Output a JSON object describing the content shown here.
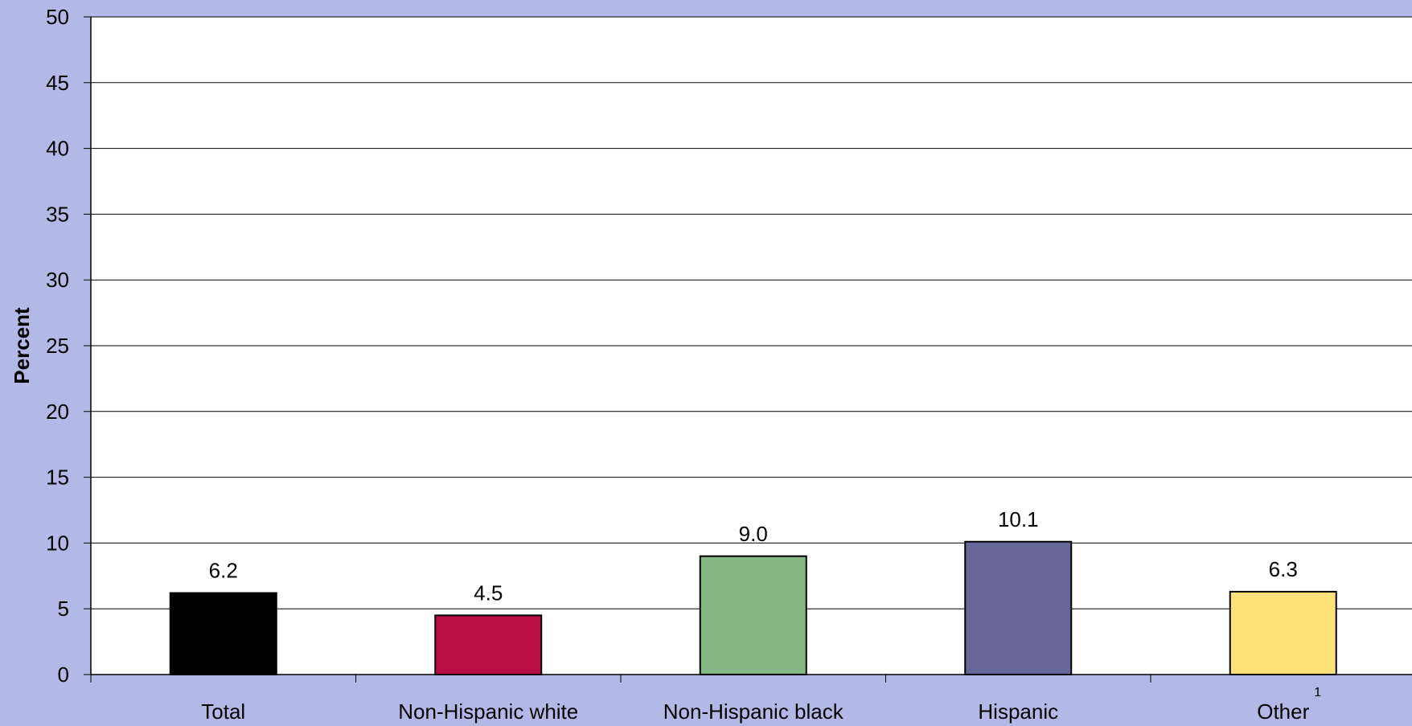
{
  "chart_data": {
    "type": "bar",
    "categories": [
      "Total",
      "Non-Hispanic white",
      "Non-Hispanic black",
      "Hispanic",
      "Other"
    ],
    "category_footnotes": [
      "",
      "",
      "",
      "",
      "1"
    ],
    "values": [
      6.2,
      4.5,
      9.0,
      10.1,
      6.3
    ],
    "data_labels": [
      "6.2",
      "4.5",
      "9.0",
      "10.1",
      "6.3"
    ],
    "bar_colors": [
      "#000000",
      "#b80f47",
      "#84b784",
      "#666699",
      "#ffe17a"
    ],
    "ylabel": "Percent",
    "xlabel": "",
    "title": "",
    "ylim": [
      0,
      50
    ],
    "yticks": [
      0,
      5,
      10,
      15,
      20,
      25,
      30,
      35,
      40,
      45,
      50
    ],
    "grid": true,
    "legend": "none"
  },
  "colors": {
    "background": "#b3b9e6",
    "plot_area": "#ffffff",
    "gridline": "#000000"
  }
}
